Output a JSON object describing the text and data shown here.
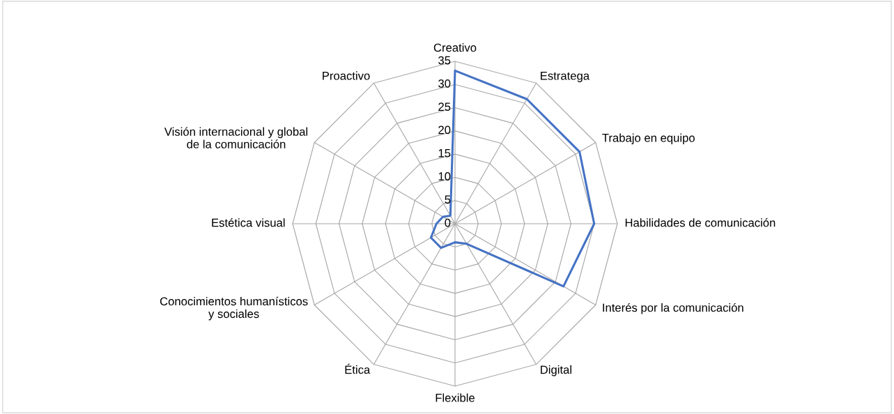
{
  "chart_data": {
    "type": "radar",
    "categories": [
      "Creativo",
      "Estratega",
      "Trabajo en equipo",
      "Habilidades de comunicación",
      "Interés por la comunicación",
      "Digital",
      "Flexible",
      "Ética",
      "Conocimientos humanísticos\ny sociales",
      "Estética visual",
      "Visión internacional y global\nde la comunicación",
      "Proactivo"
    ],
    "series": [
      {
        "color": "#4472c4",
        "values": [
          33,
          31,
          31,
          30,
          27,
          5,
          4,
          6,
          6,
          4,
          3,
          2
        ]
      }
    ],
    "ylim": [
      0,
      35
    ],
    "yticks": [
      0,
      5,
      10,
      15,
      20,
      25,
      30,
      35
    ],
    "grid": true,
    "marker": "none",
    "line_style": "solid"
  }
}
